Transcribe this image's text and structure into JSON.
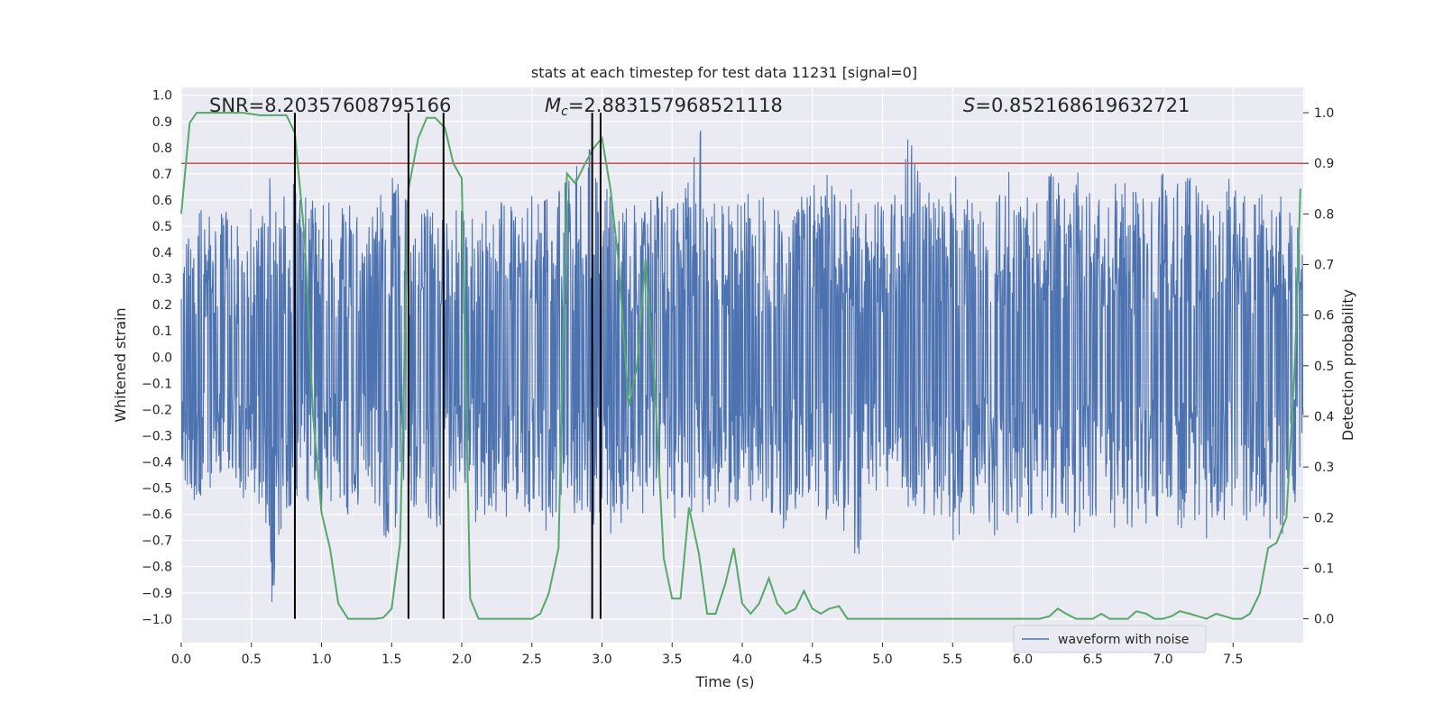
{
  "chart_data": {
    "type": "line",
    "title": "stats at each timestep for test data 11231 [signal=0]",
    "xlabel": "Time (s)",
    "ylabel_left": "Whitened strain",
    "ylabel_right": "Detection probability",
    "xlim": [
      0.0,
      8.0
    ],
    "ylim_left": [
      -1.09,
      1.03
    ],
    "ylim_right": [
      -0.047,
      1.05
    ],
    "xticks": [
      0.0,
      0.5,
      1.0,
      1.5,
      2.0,
      2.5,
      3.0,
      3.5,
      4.0,
      4.5,
      5.0,
      5.5,
      6.0,
      6.5,
      7.0,
      7.5
    ],
    "xtick_labels": [
      "0.0",
      "0.5",
      "1.0",
      "1.5",
      "2.0",
      "2.5",
      "3.0",
      "3.5",
      "4.0",
      "4.5",
      "5.0",
      "5.5",
      "6.0",
      "6.5",
      "7.0",
      "7.5"
    ],
    "yticks_left": [
      1.0,
      0.9,
      0.8,
      0.7,
      0.6,
      0.5,
      0.4,
      0.3,
      0.2,
      0.1,
      0.0,
      -0.1,
      -0.2,
      -0.3,
      -0.4,
      -0.5,
      -0.6,
      -0.7,
      -0.8,
      -0.9,
      -1.0
    ],
    "ytick_labels_left": [
      "1.0",
      "0.9",
      "0.8",
      "0.7",
      "0.6",
      "0.5",
      "0.4",
      "0.3",
      "0.2",
      "0.1",
      "0.0",
      "−0.1",
      "−0.2",
      "−0.3",
      "−0.4",
      "−0.5",
      "−0.6",
      "−0.7",
      "−0.8",
      "−0.9",
      "−1.0"
    ],
    "yticks_right": [
      1.0,
      0.9,
      0.8,
      0.7,
      0.6,
      0.5,
      0.4,
      0.3,
      0.2,
      0.1,
      0.0
    ],
    "ytick_labels_right": [
      "1.0",
      "0.9",
      "0.8",
      "0.7",
      "0.6",
      "0.5",
      "0.4",
      "0.3",
      "0.2",
      "0.1",
      "0.0"
    ],
    "annotations": {
      "snr": "SNR=8.20357608795166",
      "mc_symbol": "M",
      "mc_sub": "c",
      "mc_value": "=2.883157968521118",
      "s_symbol": "S",
      "s_value": "=0.852168619632721"
    },
    "legend": {
      "label": "waveform with noise",
      "position": "lower-right"
    },
    "threshold": {
      "value": 0.9,
      "axis": "right",
      "color": "#c44e52"
    },
    "vertical_lines": [
      0.81,
      1.62,
      1.87,
      2.93,
      2.99
    ],
    "colors": {
      "strain": "#4c72b0",
      "probability": "#55a868",
      "threshold": "#c44e52",
      "vlines": "#000000",
      "background": "#eaeaf2",
      "grid": "#ffffff"
    },
    "strain_envelope": {
      "description": "whitened strain noise, sampled for recreation",
      "x": [
        0.0,
        0.1,
        0.2,
        0.3,
        0.4,
        0.5,
        0.6,
        0.64,
        0.7,
        0.8,
        0.9,
        1.0,
        1.1,
        1.2,
        1.3,
        1.4,
        1.5,
        1.55,
        1.6,
        1.7,
        1.8,
        1.9,
        2.0,
        2.1,
        2.2,
        2.3,
        2.4,
        2.5,
        2.6,
        2.7,
        2.8,
        2.9,
        2.93,
        3.0,
        3.1,
        3.2,
        3.3,
        3.4,
        3.5,
        3.6,
        3.7,
        3.8,
        3.9,
        4.0,
        4.1,
        4.2,
        4.3,
        4.4,
        4.5,
        4.6,
        4.7,
        4.8,
        4.9,
        5.0,
        5.1,
        5.2,
        5.3,
        5.4,
        5.5,
        5.6,
        5.7,
        5.8,
        5.9,
        6.0,
        6.1,
        6.2,
        6.3,
        6.4,
        6.5,
        6.6,
        6.7,
        6.8,
        6.9,
        7.0,
        7.1,
        7.2,
        7.3,
        7.4,
        7.5,
        7.6,
        7.7,
        7.8,
        7.9,
        8.0
      ],
      "upper": [
        0.42,
        0.6,
        0.55,
        0.6,
        0.5,
        0.6,
        0.55,
        0.72,
        0.6,
        0.66,
        0.6,
        0.65,
        0.55,
        0.6,
        0.5,
        0.6,
        0.7,
        0.66,
        0.62,
        0.65,
        0.6,
        0.55,
        0.6,
        0.6,
        0.55,
        0.6,
        0.55,
        0.66,
        0.6,
        0.65,
        0.7,
        0.87,
        0.7,
        0.72,
        0.62,
        0.6,
        0.55,
        0.65,
        0.6,
        0.65,
        0.92,
        0.7,
        0.6,
        0.65,
        0.6,
        0.62,
        0.55,
        0.6,
        0.65,
        0.7,
        0.6,
        0.65,
        0.6,
        0.6,
        0.62,
        0.88,
        0.65,
        0.6,
        0.7,
        0.65,
        0.6,
        0.6,
        0.72,
        0.65,
        0.62,
        0.7,
        0.65,
        0.72,
        0.62,
        0.6,
        0.7,
        0.65,
        0.6,
        0.72,
        0.66,
        0.7,
        0.6,
        0.65,
        0.7,
        0.6,
        0.65,
        0.62,
        0.6,
        0.45
      ],
      "lower": [
        -0.47,
        -0.55,
        -0.5,
        -0.45,
        -0.55,
        -0.52,
        -0.6,
        -1.0,
        -0.68,
        -0.56,
        -0.55,
        -0.6,
        -0.55,
        -0.65,
        -0.5,
        -0.6,
        -0.77,
        -0.6,
        -0.55,
        -0.6,
        -0.72,
        -0.55,
        -0.5,
        -0.63,
        -0.6,
        -0.7,
        -0.55,
        -0.6,
        -0.7,
        -0.55,
        -0.6,
        -0.57,
        -0.75,
        -0.6,
        -0.76,
        -0.55,
        -0.6,
        -0.5,
        -0.6,
        -0.7,
        -0.6,
        -0.55,
        -0.6,
        -0.65,
        -0.55,
        -0.6,
        -0.69,
        -0.55,
        -0.6,
        -0.65,
        -0.6,
        -0.85,
        -0.6,
        -0.55,
        -0.6,
        -0.62,
        -0.6,
        -0.65,
        -0.7,
        -0.65,
        -0.55,
        -0.7,
        -0.6,
        -0.68,
        -0.55,
        -0.65,
        -0.6,
        -0.7,
        -0.6,
        -0.8,
        -0.6,
        -0.7,
        -0.65,
        -0.62,
        -0.68,
        -0.6,
        -0.7,
        -0.65,
        -0.6,
        -0.7,
        -0.62,
        -0.8,
        -0.6,
        -0.5
      ]
    },
    "series": [
      {
        "name": "detection probability",
        "axis": "right",
        "x": [
          0.0,
          0.06,
          0.11,
          0.19,
          0.31,
          0.44,
          0.56,
          0.69,
          0.75,
          0.81,
          0.88,
          0.94,
          1.0,
          1.06,
          1.12,
          1.19,
          1.25,
          1.31,
          1.38,
          1.44,
          1.5,
          1.56,
          1.62,
          1.69,
          1.75,
          1.81,
          1.88,
          1.94,
          2.0,
          2.06,
          2.12,
          2.19,
          2.25,
          2.31,
          2.38,
          2.44,
          2.5,
          2.56,
          2.62,
          2.69,
          2.75,
          2.81,
          2.88,
          2.94,
          3.0,
          3.06,
          3.12,
          3.19,
          3.25,
          3.31,
          3.38,
          3.44,
          3.5,
          3.56,
          3.62,
          3.69,
          3.75,
          3.81,
          3.88,
          3.94,
          4.0,
          4.06,
          4.12,
          4.19,
          4.25,
          4.31,
          4.38,
          4.44,
          4.5,
          4.56,
          4.62,
          4.69,
          4.75,
          4.81,
          4.88,
          5.0,
          5.25,
          5.5,
          5.75,
          6.0,
          6.12,
          6.19,
          6.25,
          6.31,
          6.38,
          6.5,
          6.56,
          6.62,
          6.69,
          6.75,
          6.81,
          6.88,
          6.94,
          7.0,
          7.06,
          7.12,
          7.19,
          7.25,
          7.31,
          7.38,
          7.44,
          7.5,
          7.56,
          7.62,
          7.69,
          7.75,
          7.81,
          7.88,
          7.94,
          7.98
        ],
        "values": [
          0.8,
          0.98,
          1.0,
          1.0,
          1.0,
          1.0,
          0.995,
          0.995,
          0.995,
          0.96,
          0.75,
          0.4,
          0.21,
          0.14,
          0.03,
          0.0,
          0.0,
          0.0,
          0.0,
          0.002,
          0.02,
          0.15,
          0.85,
          0.95,
          0.99,
          0.99,
          0.97,
          0.9,
          0.87,
          0.04,
          0.0,
          0.0,
          0.0,
          0.0,
          0.0,
          0.0,
          0.0,
          0.01,
          0.05,
          0.14,
          0.88,
          0.86,
          0.9,
          0.93,
          0.95,
          0.85,
          0.7,
          0.42,
          0.5,
          0.71,
          0.44,
          0.12,
          0.04,
          0.04,
          0.22,
          0.13,
          0.01,
          0.01,
          0.07,
          0.14,
          0.03,
          0.01,
          0.03,
          0.08,
          0.03,
          0.01,
          0.02,
          0.055,
          0.02,
          0.01,
          0.02,
          0.025,
          0.0,
          0.0,
          0.0,
          0.0,
          0.0,
          0.0,
          0.0,
          0.0,
          0.0,
          0.005,
          0.02,
          0.01,
          0.0,
          0.0,
          0.01,
          0.0,
          0.0,
          0.0,
          0.015,
          0.01,
          0.0,
          0.0,
          0.005,
          0.015,
          0.01,
          0.005,
          0.0,
          0.01,
          0.005,
          0.0,
          0.0,
          0.01,
          0.05,
          0.14,
          0.15,
          0.2,
          0.5,
          0.85
        ]
      }
    ]
  }
}
